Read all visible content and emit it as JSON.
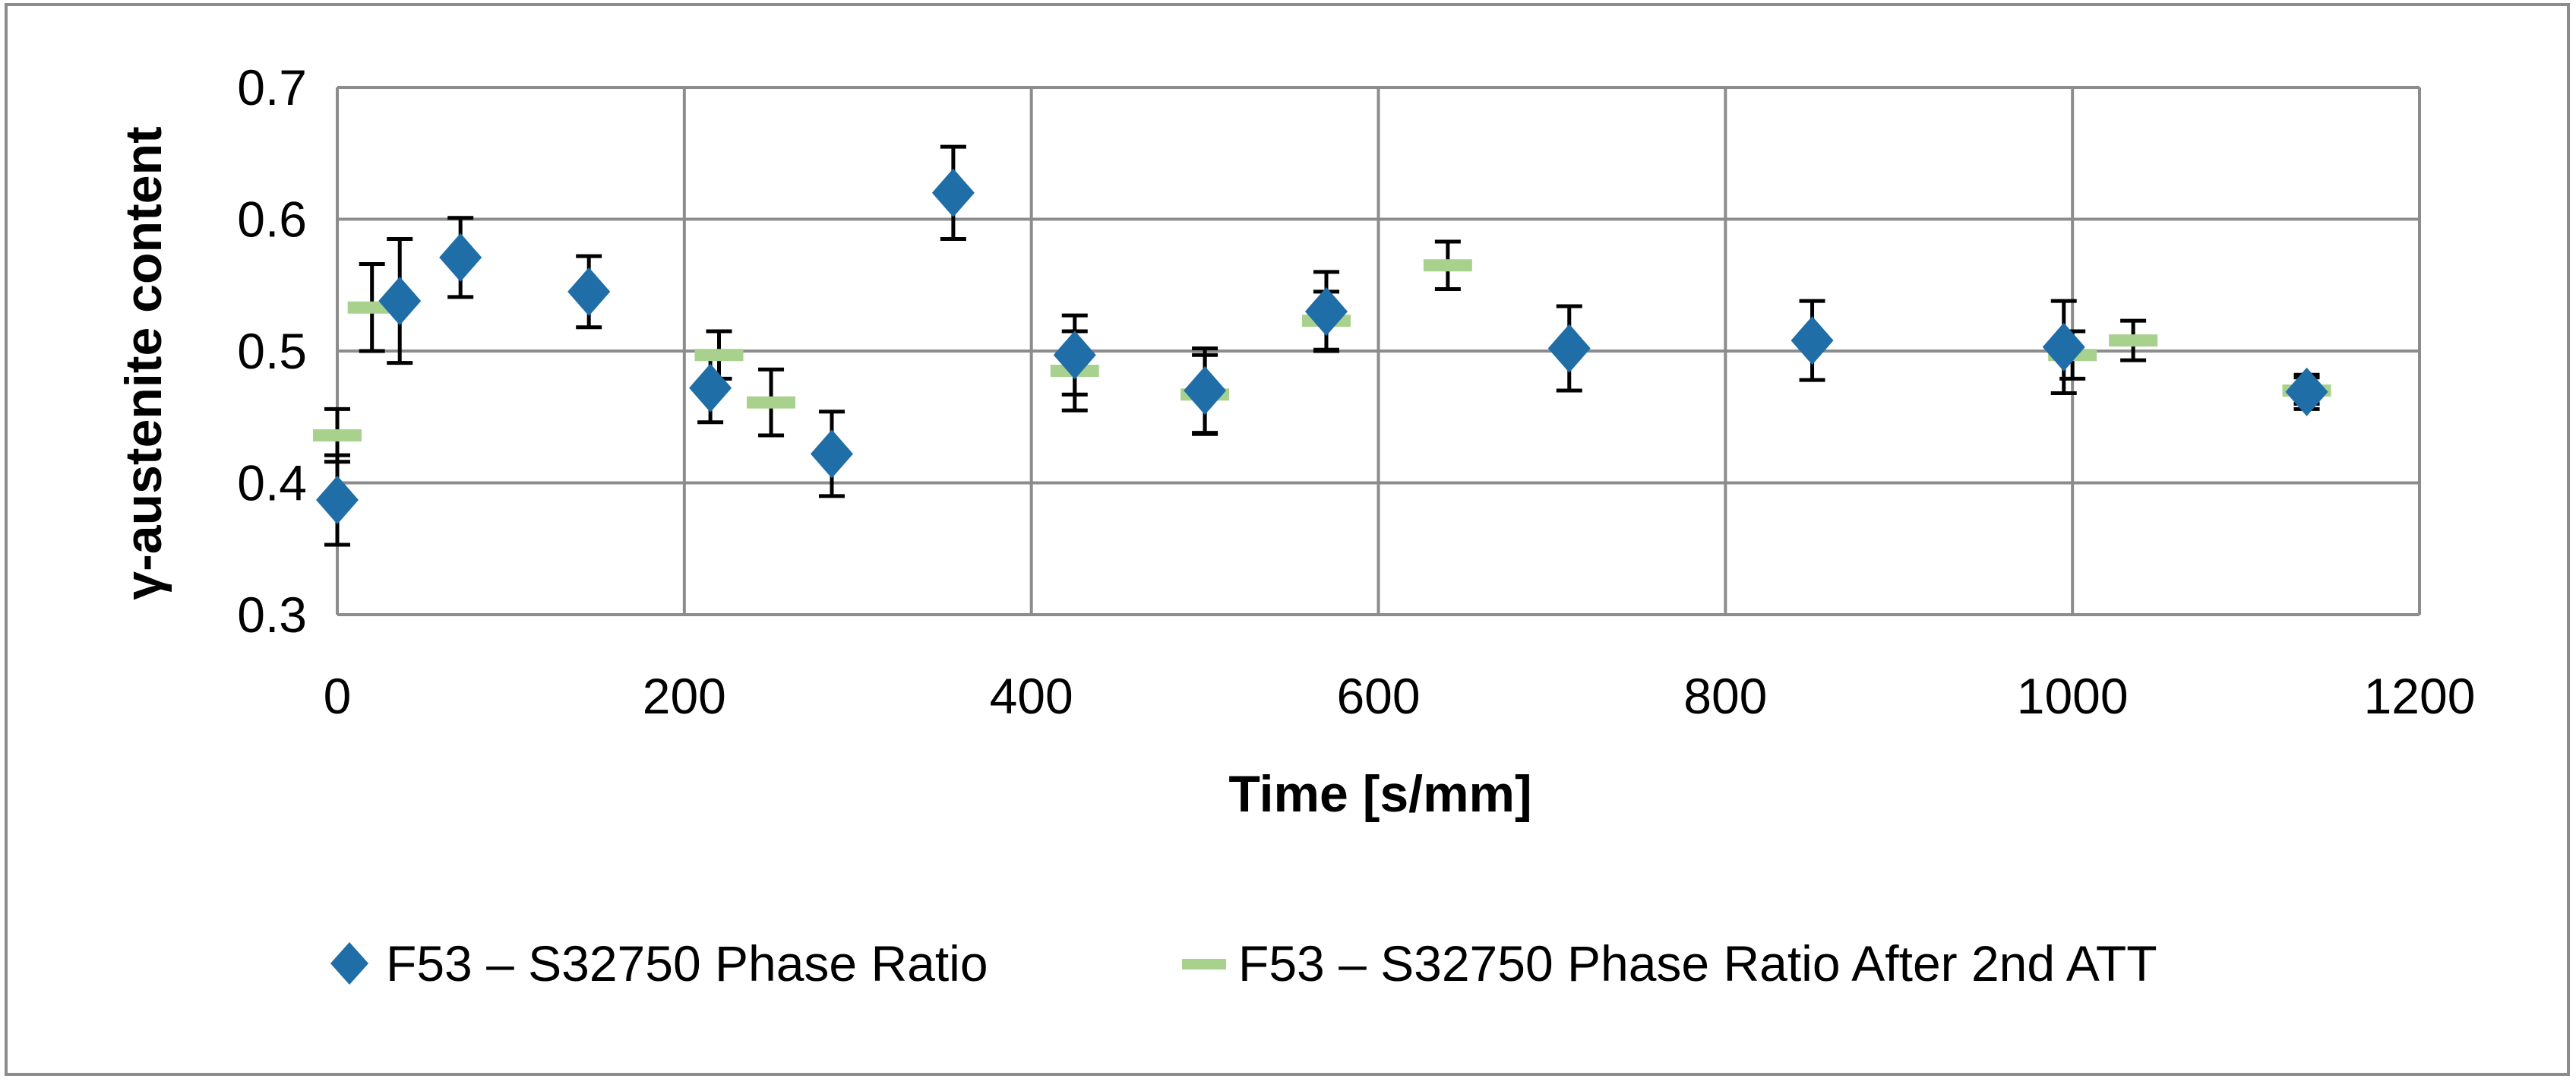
{
  "chart_data": {
    "type": "scatter",
    "title": "",
    "xlabel": "Time [s/mm]",
    "ylabel": "γ-austenite content",
    "xlim": [
      0,
      1200
    ],
    "ylim": [
      0.3,
      0.7
    ],
    "x_ticks": [
      0,
      200,
      400,
      600,
      800,
      1000,
      1200
    ],
    "y_ticks": [
      0.3,
      0.4,
      0.5,
      0.6,
      0.7
    ],
    "x_tick_labels": [
      "0",
      "200",
      "400",
      "600",
      "800",
      "1000",
      "1200"
    ],
    "y_tick_labels": [
      "0.3",
      "0.4",
      "0.5",
      "0.6",
      "0.7"
    ],
    "grid": true,
    "legend_position": "bottom",
    "series": [
      {
        "name": "F53 – S32750 Phase Ratio",
        "marker": "diamond",
        "color": "#1f6ea8",
        "points": [
          {
            "x": 0,
            "y": 0.387,
            "err": 0.034
          },
          {
            "x": 36,
            "y": 0.538,
            "err": 0.047
          },
          {
            "x": 71,
            "y": 0.571,
            "err": 0.03
          },
          {
            "x": 145,
            "y": 0.545,
            "err": 0.027
          },
          {
            "x": 215,
            "y": 0.472,
            "err": 0.026
          },
          {
            "x": 285,
            "y": 0.422,
            "err": 0.032
          },
          {
            "x": 355,
            "y": 0.62,
            "err": 0.035
          },
          {
            "x": 425,
            "y": 0.497,
            "err": 0.03
          },
          {
            "x": 500,
            "y": 0.47,
            "err": 0.032
          },
          {
            "x": 570,
            "y": 0.53,
            "err": 0.03
          },
          {
            "x": 710,
            "y": 0.502,
            "err": 0.032
          },
          {
            "x": 850,
            "y": 0.508,
            "err": 0.03
          },
          {
            "x": 995,
            "y": 0.503,
            "err": 0.035
          },
          {
            "x": 1135,
            "y": 0.469,
            "err": 0.013
          }
        ]
      },
      {
        "name": "F53 – S32750 Phase Ratio After 2nd ATT",
        "marker": "dash",
        "color": "#a9d18e",
        "points": [
          {
            "x": 0,
            "y": 0.436,
            "err": 0.02
          },
          {
            "x": 20,
            "y": 0.533,
            "err": 0.033
          },
          {
            "x": 220,
            "y": 0.497,
            "err": 0.018
          },
          {
            "x": 250,
            "y": 0.461,
            "err": 0.025
          },
          {
            "x": 425,
            "y": 0.485,
            "err": 0.03
          },
          {
            "x": 500,
            "y": 0.467,
            "err": 0.03
          },
          {
            "x": 570,
            "y": 0.523,
            "err": 0.022
          },
          {
            "x": 640,
            "y": 0.565,
            "err": 0.018
          },
          {
            "x": 1000,
            "y": 0.497,
            "err": 0.018
          },
          {
            "x": 1035,
            "y": 0.508,
            "err": 0.015
          },
          {
            "x": 1135,
            "y": 0.47,
            "err": 0.01
          }
        ]
      }
    ]
  }
}
